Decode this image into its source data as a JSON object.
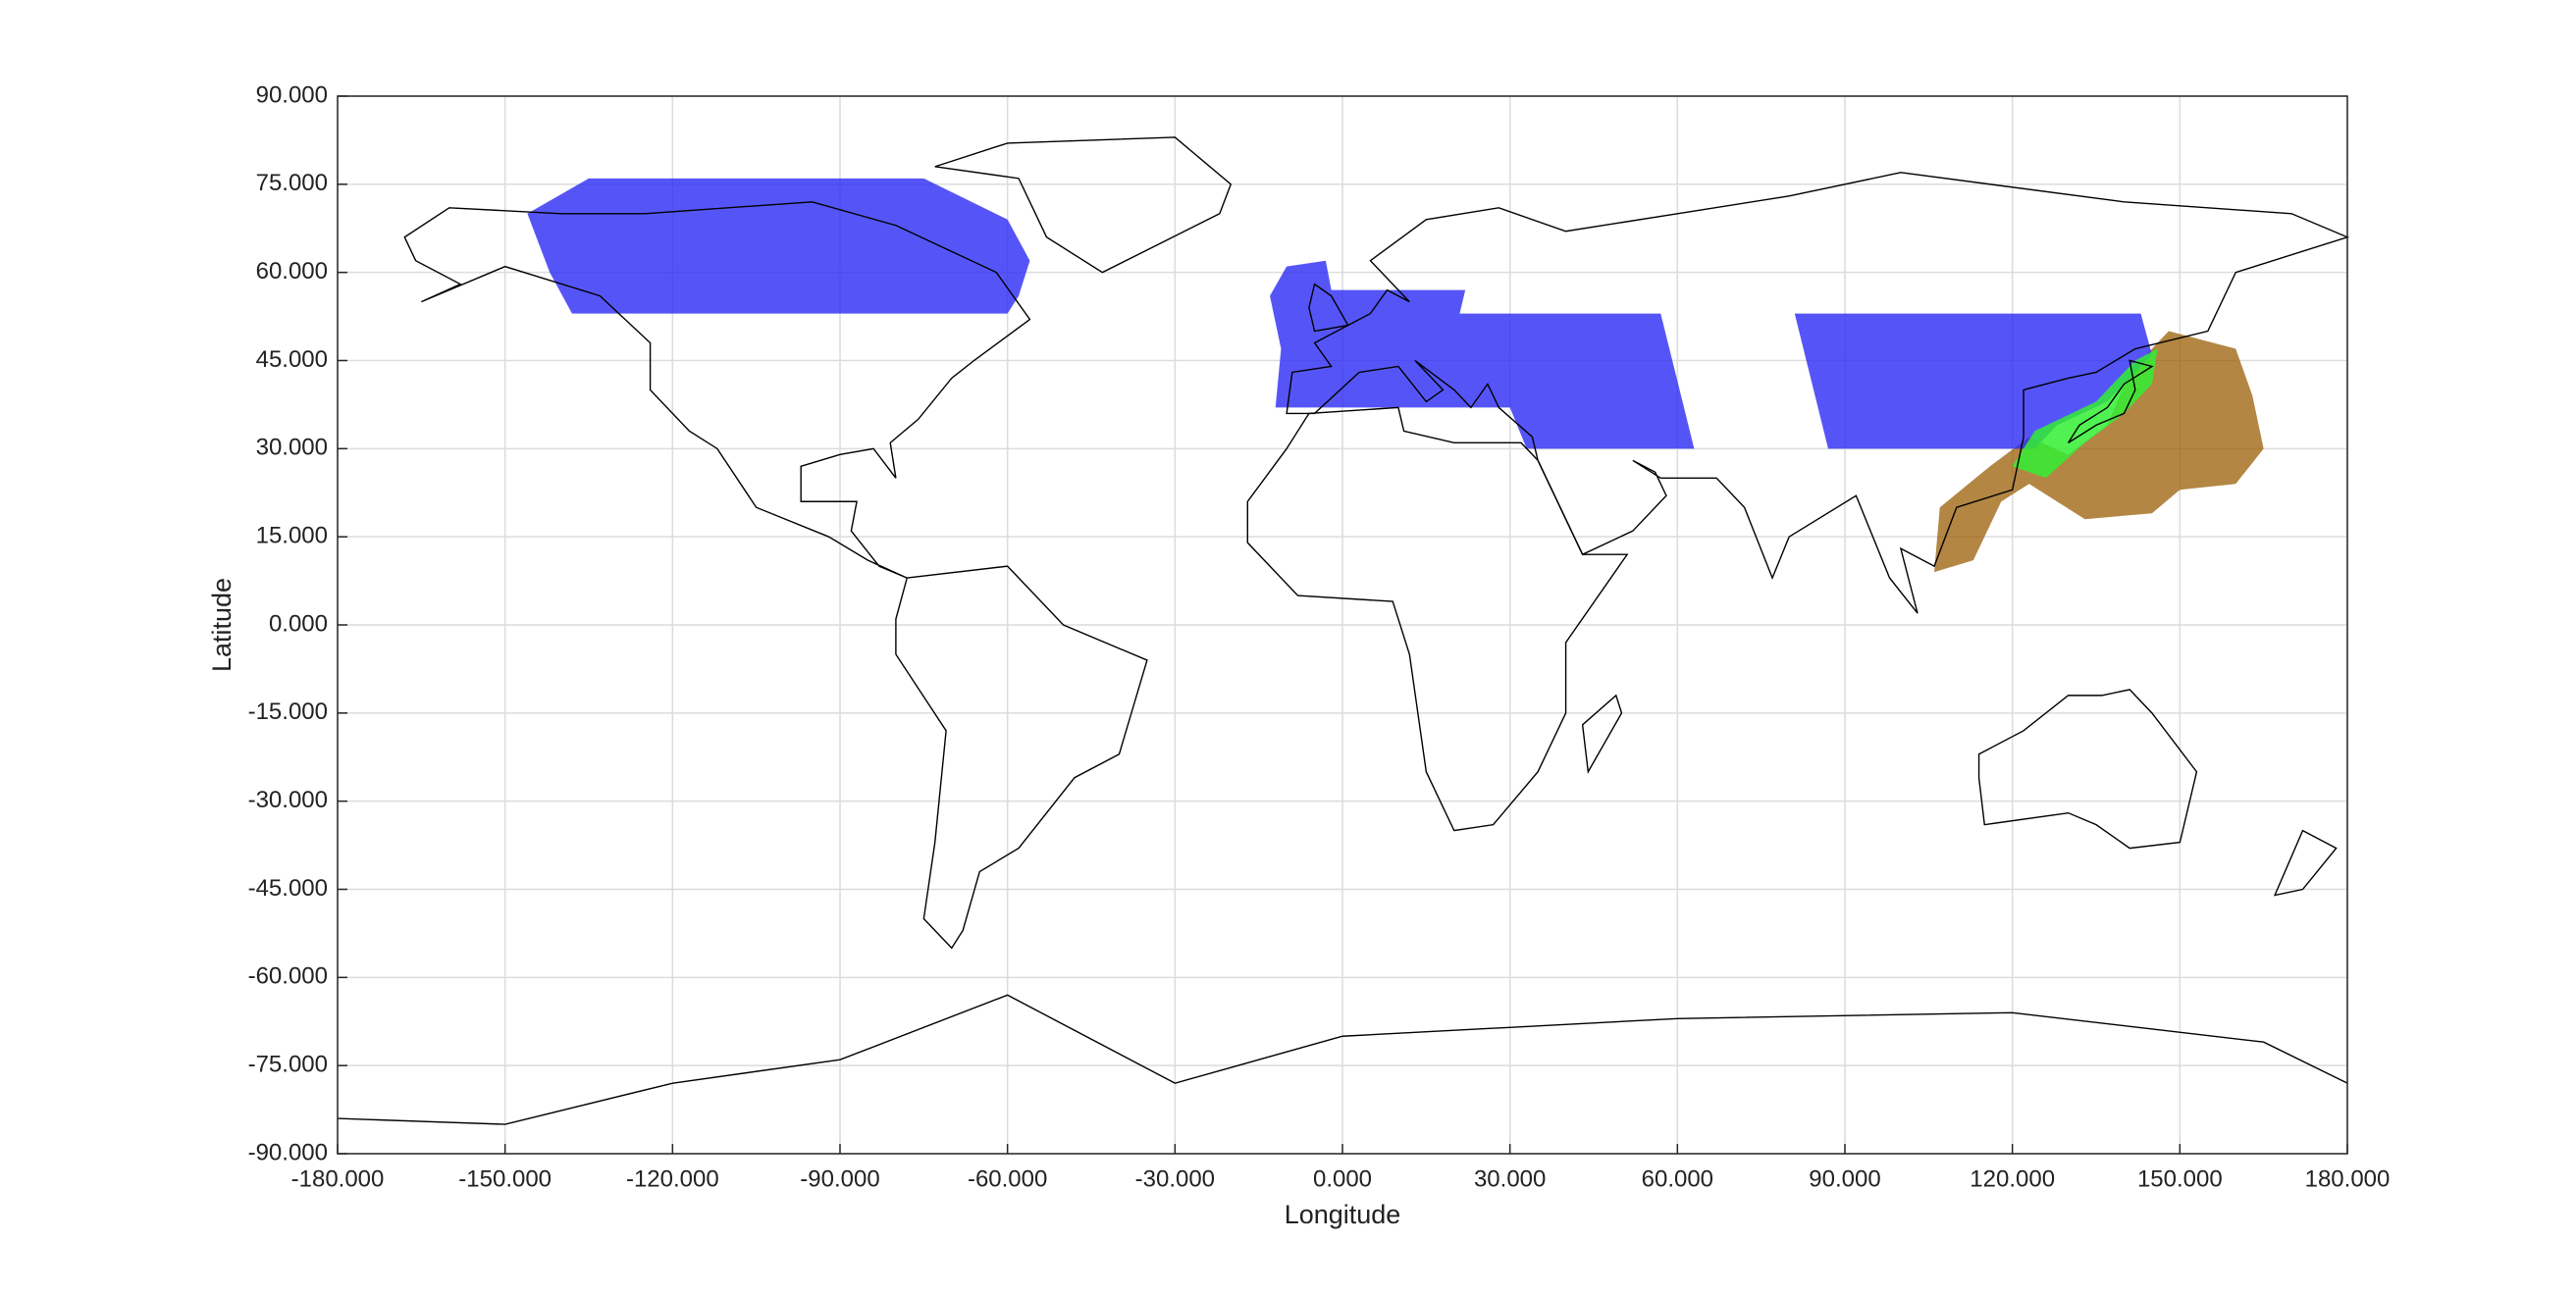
{
  "chart_data": {
    "type": "map",
    "xlabel": "Longitude",
    "ylabel": "Latitude",
    "xlim": [
      -180,
      180
    ],
    "ylim": [
      -90,
      90
    ],
    "grid": true,
    "xticks": [
      {
        "value": -180,
        "label": "-180.000"
      },
      {
        "value": -150,
        "label": "-150.000"
      },
      {
        "value": -120,
        "label": "-120.000"
      },
      {
        "value": -90,
        "label": "-90.000"
      },
      {
        "value": -60,
        "label": "-60.000"
      },
      {
        "value": -30,
        "label": "-30.000"
      },
      {
        "value": 0,
        "label": "0.000"
      },
      {
        "value": 30,
        "label": "30.000"
      },
      {
        "value": 60,
        "label": "60.000"
      },
      {
        "value": 90,
        "label": "90.000"
      },
      {
        "value": 120,
        "label": "120.000"
      },
      {
        "value": 150,
        "label": "150.000"
      },
      {
        "value": 180,
        "label": "180.000"
      }
    ],
    "yticks": [
      {
        "value": -90,
        "label": "-90.000"
      },
      {
        "value": -75,
        "label": "-75.000"
      },
      {
        "value": -60,
        "label": "-60.000"
      },
      {
        "value": -45,
        "label": "-45.000"
      },
      {
        "value": -30,
        "label": "-30.000"
      },
      {
        "value": -15,
        "label": "-15.000"
      },
      {
        "value": 0,
        "label": "0.000"
      },
      {
        "value": 15,
        "label": "15.000"
      },
      {
        "value": 30,
        "label": "30.000"
      },
      {
        "value": 45,
        "label": "45.000"
      },
      {
        "value": 60,
        "label": "60.000"
      },
      {
        "value": 75,
        "label": "75.000"
      },
      {
        "value": 90,
        "label": "90.000"
      }
    ],
    "regions": [
      {
        "color": "#9a5e05",
        "opacity": 0.75,
        "lon": [
          107,
          106,
          113,
          118,
          123,
          133,
          145,
          150,
          160,
          165,
          163,
          160,
          148,
          141,
          137,
          130,
          123,
          116
        ],
        "lat": [
          20,
          9,
          11,
          21,
          24,
          18,
          19,
          23,
          24,
          30,
          39,
          47,
          50,
          43,
          34,
          29,
          32,
          27
        ]
      },
      {
        "color": "#2a2af5",
        "opacity": 0.8,
        "lon": [
          -146,
          -135,
          -75,
          -60,
          -56,
          -58,
          -60,
          -138,
          -142
        ],
        "lat": [
          70,
          76,
          76,
          69,
          62,
          56,
          53,
          53,
          60
        ]
      },
      {
        "color": "#2a2af5",
        "opacity": 0.8,
        "lon": [
          -10,
          -3,
          -2,
          22,
          21,
          57,
          63,
          33,
          30,
          -12,
          -11,
          -13
        ],
        "lat": [
          61,
          62,
          57,
          57,
          53,
          53,
          30,
          30,
          37,
          37,
          47,
          56
        ]
      },
      {
        "color": "#2a2af5",
        "opacity": 0.8,
        "lon": [
          81,
          143,
          145,
          137,
          128,
          124,
          87
        ],
        "lat": [
          53,
          53,
          46,
          38,
          34,
          30,
          30
        ]
      },
      {
        "color": "#33ee33",
        "opacity": 0.85,
        "lon": [
          120,
          124,
          135,
          142,
          146,
          145,
          140,
          133,
          126
        ],
        "lat": [
          27,
          33,
          38,
          45,
          47,
          41,
          36,
          31,
          25
        ]
      }
    ]
  }
}
